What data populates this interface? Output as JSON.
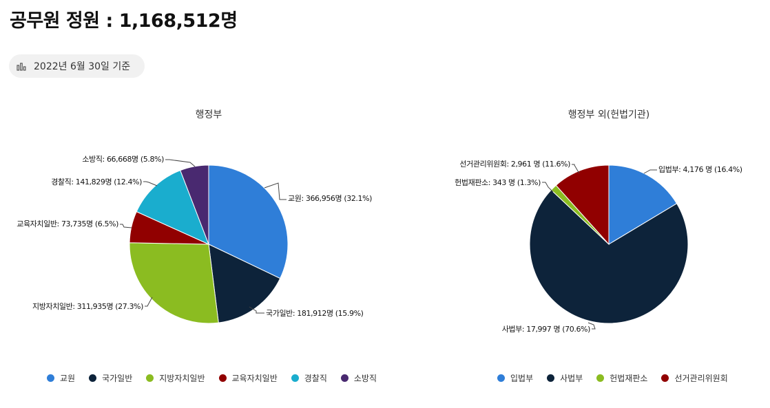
{
  "header": {
    "title": "공무원 정원 : 1,168,512명",
    "date_chip": "2022년 6월 30일 기준",
    "date_icon": "bar-chart-icon"
  },
  "chart_data": [
    {
      "type": "pie",
      "title": "행정부",
      "legend_position": "bottom",
      "categories": [
        "교원",
        "국가일반",
        "지방자치일반",
        "교육자치일반",
        "경찰직",
        "소방직"
      ],
      "values": [
        366956,
        181912,
        311935,
        73735,
        141829,
        66668
      ],
      "percents": [
        32.1,
        15.9,
        27.3,
        6.5,
        12.4,
        5.8
      ],
      "colors": [
        "#2f7ed8",
        "#0d233a",
        "#8bbc21",
        "#910000",
        "#1aadce",
        "#492970"
      ],
      "data_labels": [
        "교원: 366,956명 (32.1%)",
        "국가일반: 181,912명 (15.9%)",
        "지방자치일반: 311,935명 (27.3%)",
        "교육자치일반: 73,735명 (6.5%)",
        "경찰직: 141,829명 (12.4%)",
        "소방직: 66,668명 (5.8%)"
      ]
    },
    {
      "type": "pie",
      "title": "행정부 외(헌법기관)",
      "legend_position": "bottom",
      "categories": [
        "입법부",
        "사법부",
        "헌법재판소",
        "선거관리위원회"
      ],
      "values": [
        4176,
        17997,
        343,
        2961
      ],
      "percents": [
        16.4,
        70.6,
        1.3,
        11.6
      ],
      "colors": [
        "#2f7ed8",
        "#0d233a",
        "#8bbc21",
        "#910000"
      ],
      "data_labels": [
        "입법부: 4,176 명 (16.4%)",
        "사법부: 17,997 명 (70.6%)",
        "헌법재판소: 343 명 (1.3%)",
        "선거관리위원회: 2,961 명 (11.6%)"
      ]
    }
  ]
}
